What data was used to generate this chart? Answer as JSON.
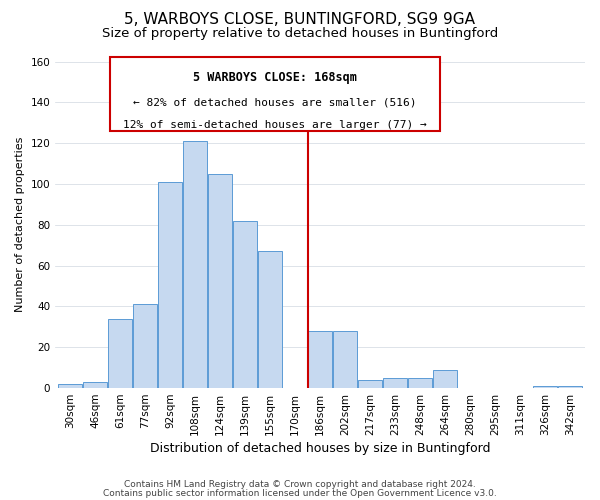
{
  "title": "5, WARBOYS CLOSE, BUNTINGFORD, SG9 9GA",
  "subtitle": "Size of property relative to detached houses in Buntingford",
  "xlabel": "Distribution of detached houses by size in Buntingford",
  "ylabel": "Number of detached properties",
  "bin_labels": [
    "30sqm",
    "46sqm",
    "61sqm",
    "77sqm",
    "92sqm",
    "108sqm",
    "124sqm",
    "139sqm",
    "155sqm",
    "170sqm",
    "186sqm",
    "202sqm",
    "217sqm",
    "233sqm",
    "248sqm",
    "264sqm",
    "280sqm",
    "295sqm",
    "311sqm",
    "326sqm",
    "342sqm"
  ],
  "bar_heights": [
    2,
    3,
    34,
    41,
    101,
    121,
    105,
    82,
    67,
    0,
    28,
    28,
    4,
    5,
    5,
    9,
    0,
    0,
    0,
    1,
    1
  ],
  "bar_color": "#c6d9f0",
  "bar_edge_color": "#5b9bd5",
  "vline_x": 9.5,
  "vline_color": "#cc0000",
  "annotation_title": "5 WARBOYS CLOSE: 168sqm",
  "annotation_line1": "← 82% of detached houses are smaller (516)",
  "annotation_line2": "12% of semi-detached houses are larger (77) →",
  "annotation_box_edge": "#cc0000",
  "footer1": "Contains HM Land Registry data © Crown copyright and database right 2024.",
  "footer2": "Contains public sector information licensed under the Open Government Licence v3.0.",
  "ylim": [
    0,
    160
  ],
  "yticks": [
    0,
    20,
    40,
    60,
    80,
    100,
    120,
    140,
    160
  ],
  "title_fontsize": 11,
  "subtitle_fontsize": 9.5,
  "xlabel_fontsize": 9,
  "ylabel_fontsize": 8,
  "tick_fontsize": 7.5,
  "footer_fontsize": 6.5,
  "ann_title_fontsize": 8.5,
  "ann_text_fontsize": 8
}
